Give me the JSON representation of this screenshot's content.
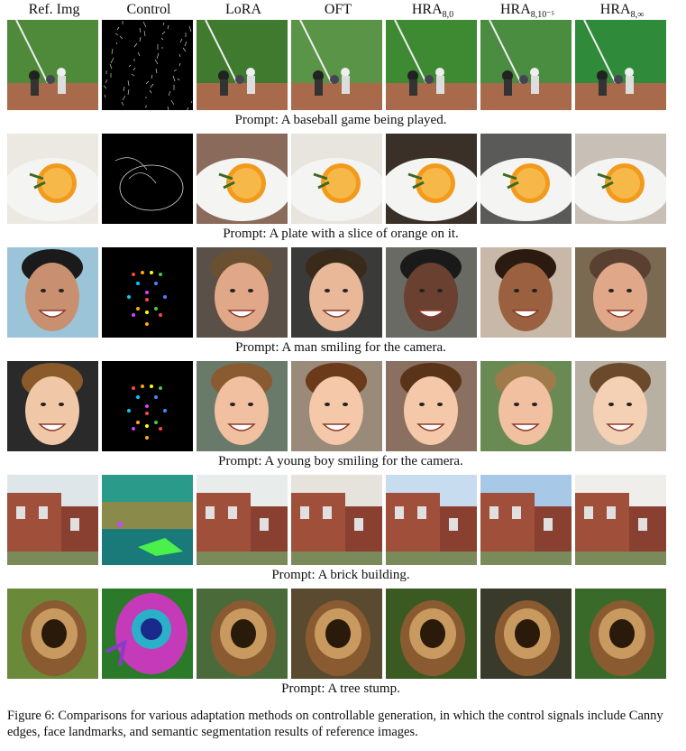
{
  "columns": [
    {
      "label": "Ref. Img",
      "sub": ""
    },
    {
      "label": "Control",
      "sub": ""
    },
    {
      "label": "LoRA",
      "sub": ""
    },
    {
      "label": "OFT",
      "sub": ""
    },
    {
      "label": "HRA",
      "sub": "8,0"
    },
    {
      "label": "HRA",
      "sub": "8,10⁻⁵"
    },
    {
      "label": "HRA",
      "sub": "8,∞"
    }
  ],
  "rows": [
    {
      "prompt": "Prompt: A baseball game being played.",
      "scene": "baseball"
    },
    {
      "prompt": "Prompt: A plate with a slice of orange on it.",
      "scene": "orange"
    },
    {
      "prompt": "Prompt: A man smiling for the camera.",
      "scene": "man"
    },
    {
      "prompt": "Prompt: A young boy smiling for the camera.",
      "scene": "boy"
    },
    {
      "prompt": "Prompt: A brick building.",
      "scene": "brick"
    },
    {
      "prompt": "Prompt: A tree stump.",
      "scene": "stump"
    }
  ],
  "caption": "Figure 6: Comparisons for various adaptation methods on controllable generation, in which the control signals include Canny edges, face landmarks, and semantic segmentation results of reference images."
}
